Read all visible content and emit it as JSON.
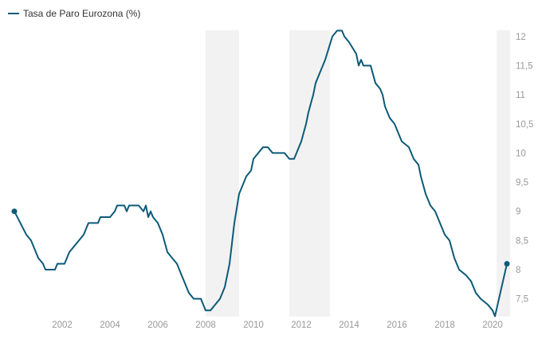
{
  "chart_data": {
    "type": "line",
    "title": "",
    "xlabel": "",
    "ylabel": "",
    "legend": {
      "placement": "top-left",
      "entries": [
        "Tasa de Paro Eurozona (%)"
      ]
    },
    "series": [
      {
        "name": "Tasa de Paro Eurozona (%)",
        "color": "#0c5a78",
        "x": [
          2000.0,
          2000.5,
          2000.7,
          2001.0,
          2001.2,
          2001.3,
          2001.7,
          2001.8,
          2002.1,
          2002.3,
          2002.5,
          2002.7,
          2002.9,
          2003.1,
          2003.5,
          2003.6,
          2004.0,
          2004.2,
          2004.3,
          2004.6,
          2004.7,
          2004.8,
          2005.2,
          2005.4,
          2005.5,
          2005.6,
          2005.7,
          2005.8,
          2006.0,
          2006.2,
          2006.4,
          2006.6,
          2006.8,
          2007.0,
          2007.3,
          2007.5,
          2007.8,
          2007.9,
          2008.0,
          2008.2,
          2008.4,
          2008.6,
          2008.8,
          2009.0,
          2009.2,
          2009.4,
          2009.7,
          2009.9,
          2010.0,
          2010.2,
          2010.4,
          2010.6,
          2010.8,
          2011.0,
          2011.3,
          2011.5,
          2011.7,
          2012.0,
          2012.2,
          2012.3,
          2012.5,
          2012.6,
          2012.8,
          2013.0,
          2013.3,
          2013.5,
          2013.7,
          2013.8,
          2014.0,
          2014.3,
          2014.4,
          2014.5,
          2014.6,
          2014.9,
          2015.1,
          2015.3,
          2015.4,
          2015.5,
          2015.7,
          2015.9,
          2016.0,
          2016.2,
          2016.5,
          2016.7,
          2016.9,
          2017.0,
          2017.2,
          2017.4,
          2017.6,
          2017.8,
          2018.0,
          2018.2,
          2018.4,
          2018.6,
          2018.9,
          2019.1,
          2019.3,
          2019.5,
          2019.8,
          2020.0,
          2020.1,
          2020.6
        ],
        "y": [
          9.0,
          8.6,
          8.5,
          8.2,
          8.1,
          8.0,
          8.0,
          8.1,
          8.1,
          8.3,
          8.4,
          8.5,
          8.6,
          8.8,
          8.8,
          8.9,
          8.9,
          9.0,
          9.1,
          9.1,
          9.0,
          9.1,
          9.1,
          9.0,
          9.1,
          8.9,
          9.0,
          8.9,
          8.8,
          8.6,
          8.3,
          8.2,
          8.1,
          7.9,
          7.6,
          7.5,
          7.5,
          7.4,
          7.3,
          7.3,
          7.4,
          7.5,
          7.7,
          8.1,
          8.8,
          9.3,
          9.6,
          9.7,
          9.9,
          10.0,
          10.1,
          10.1,
          10.0,
          10.0,
          10.0,
          9.9,
          9.9,
          10.2,
          10.5,
          10.7,
          11.0,
          11.2,
          11.4,
          11.6,
          12.0,
          12.1,
          12.1,
          12.0,
          11.9,
          11.7,
          11.5,
          11.6,
          11.5,
          11.5,
          11.2,
          11.1,
          11.0,
          10.8,
          10.6,
          10.5,
          10.4,
          10.2,
          10.1,
          9.9,
          9.8,
          9.6,
          9.3,
          9.1,
          9.0,
          8.8,
          8.6,
          8.5,
          8.2,
          8.0,
          7.9,
          7.8,
          7.6,
          7.5,
          7.4,
          7.3,
          7.2,
          8.1
        ]
      }
    ],
    "markers": [
      {
        "x": 2000.0,
        "y": 9.0
      },
      {
        "x": 2020.6,
        "y": 8.1
      }
    ],
    "shaded_periods": [
      [
        2008.0,
        2009.4
      ],
      [
        2011.5,
        2013.2
      ],
      [
        2020.17,
        2020.75
      ]
    ],
    "xlim": [
      2000.0,
      2020.75
    ],
    "ylim": [
      7.2,
      12.1
    ],
    "xticks": [
      "2002",
      "2004",
      "2006",
      "2008",
      "2010",
      "2012",
      "2014",
      "2016",
      "2018",
      "2020"
    ],
    "yticks": [
      "7,5",
      "8",
      "8,5",
      "9",
      "9,5",
      "10",
      "10,5",
      "11",
      "11,5",
      "12"
    ],
    "y_axis_side": "right",
    "grid": false
  }
}
